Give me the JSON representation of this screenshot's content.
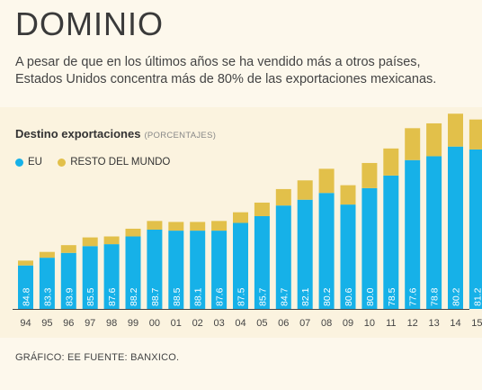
{
  "header": {
    "title": "DOMINIO",
    "subtitle": "A pesar de que en los últimos años se ha vendido más a otros países, Estados Unidos concentra más de 80% de las exportaciones mexicanas."
  },
  "footer": {
    "credit": "GRÁFICO: EE FUENTE: BANXICO."
  },
  "chart_data": {
    "type": "bar",
    "stacked": true,
    "title": "Destino exportaciones",
    "unit_label": "(PORCENTAJES)",
    "categories": [
      "94",
      "95",
      "96",
      "97",
      "98",
      "99",
      "00",
      "01",
      "02",
      "03",
      "04",
      "05",
      "06",
      "07",
      "08",
      "09",
      "10",
      "11",
      "12",
      "13",
      "14",
      "15"
    ],
    "data_labels": [
      "84.8",
      "83.3",
      "83.9",
      "85.5",
      "87.6",
      "88.2",
      "88.7",
      "88.5",
      "88.1",
      "87.6",
      "87.5",
      "85.7",
      "84.7",
      "82.1",
      "80.2",
      "80.6",
      "80.0",
      "78.5",
      "77.6",
      "78.8",
      "80.2",
      "81.2"
    ],
    "series": [
      {
        "name": "EU",
        "color": "#16b1e8",
        "values": [
          45,
          53,
          58,
          65,
          67,
          75,
          82,
          81,
          81,
          81,
          89,
          96,
          107,
          113,
          120,
          108,
          125,
          138,
          154,
          158,
          168,
          165
        ]
      },
      {
        "name": "RESTO DEL MUNDO",
        "color": "#e2c04a",
        "values": [
          5,
          6,
          8,
          9,
          8,
          8,
          9,
          9,
          9,
          10,
          11,
          14,
          17,
          20,
          25,
          20,
          26,
          28,
          33,
          34,
          34,
          31
        ]
      }
    ],
    "ylim": [
      0,
      205
    ],
    "grid": false,
    "legend_position": "top-left"
  }
}
